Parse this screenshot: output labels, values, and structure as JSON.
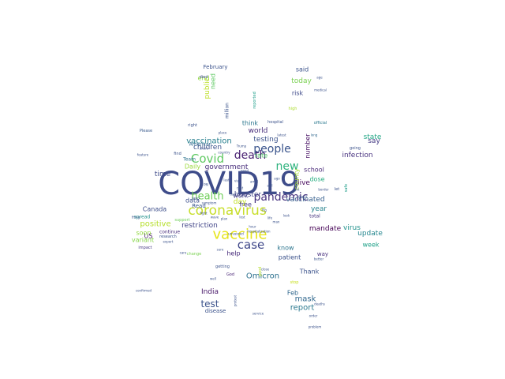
{
  "words": [
    {
      "text": "COVID19",
      "color": "#3e4c8a"
    },
    {
      "text": "coronavirus",
      "color": "#c8de2b"
    },
    {
      "text": "vaccine",
      "color": "#e6e41b"
    },
    {
      "text": "death",
      "color": "#482071"
    },
    {
      "text": "Covid",
      "color": "#5fc962"
    },
    {
      "text": "people",
      "color": "#3a548c"
    },
    {
      "text": "new",
      "color": "#2db27d"
    },
    {
      "text": "case",
      "color": "#3f4789"
    },
    {
      "text": "pandemic",
      "color": "#46327e"
    },
    {
      "text": "health",
      "color": "#6ece58"
    },
    {
      "text": "vaccination",
      "color": "#277f8e"
    },
    {
      "text": "positive",
      "color": "#b5de2b"
    },
    {
      "text": "Omicron",
      "color": "#2c718e"
    },
    {
      "text": "restriction",
      "color": "#414487"
    },
    {
      "text": "mandate",
      "color": "#440154"
    },
    {
      "text": "test",
      "color": "#3b528b"
    },
    {
      "text": "mask",
      "color": "#31688e"
    },
    {
      "text": "report",
      "color": "#2a788e"
    },
    {
      "text": "government",
      "color": "#472d7b"
    },
    {
      "text": "vaccinated",
      "color": "#355f8d"
    },
    {
      "text": "testing",
      "color": "#3b528b"
    },
    {
      "text": "world",
      "color": "#472c7a"
    },
    {
      "text": "children",
      "color": "#3b528b"
    },
    {
      "text": "booster",
      "color": "#404688"
    },
    {
      "text": "infection",
      "color": "#46307e"
    },
    {
      "text": "update",
      "color": "#24868e"
    },
    {
      "text": "virus",
      "color": "#21918c"
    },
    {
      "text": "time",
      "color": "#3e4a89"
    },
    {
      "text": "Canada",
      "color": "#3d4e8a"
    },
    {
      "text": "India",
      "color": "#48186a"
    },
    {
      "text": "live",
      "color": "#46085c"
    },
    {
      "text": "year",
      "color": "#26828e"
    },
    {
      "text": "say",
      "color": "#443983"
    },
    {
      "text": "state",
      "color": "#21a685"
    },
    {
      "text": "week",
      "color": "#1fa188"
    },
    {
      "text": "today",
      "color": "#7ad151"
    },
    {
      "text": "said",
      "color": "#3b528b"
    },
    {
      "text": "dose",
      "color": "#27ad81"
    },
    {
      "text": "school",
      "color": "#482878"
    },
    {
      "text": "rate",
      "color": "#50c46a"
    },
    {
      "text": "day",
      "color": "#c2df23"
    },
    {
      "text": "data",
      "color": "#3c4f8a"
    },
    {
      "text": "know",
      "color": "#2b748e"
    },
    {
      "text": "patient",
      "color": "#3b528b"
    },
    {
      "text": "help",
      "color": "#472a7a"
    },
    {
      "text": "work",
      "color": "#433e85"
    },
    {
      "text": "US",
      "color": "#481b6d"
    },
    {
      "text": "variant",
      "color": "#86d549"
    },
    {
      "text": "soon",
      "color": "#93d741"
    },
    {
      "text": "Thank",
      "color": "#3b528b"
    },
    {
      "text": "number",
      "color": "#471164"
    },
    {
      "text": "county",
      "color": "#a8db34"
    },
    {
      "text": "end",
      "color": "#90d743"
    },
    {
      "text": "public",
      "color": "#bddf26"
    },
    {
      "text": "need",
      "color": "#5ec962"
    },
    {
      "text": "Daily",
      "color": "#9bd93c"
    },
    {
      "text": "think",
      "color": "#2a768e"
    },
    {
      "text": "free",
      "color": "#443a83"
    },
    {
      "text": "Feb",
      "color": "#31688e"
    },
    {
      "text": "risk",
      "color": "#3e4989"
    },
    {
      "text": "way",
      "color": "#472f7d"
    },
    {
      "text": "Read",
      "color": "#39568c"
    },
    {
      "text": "total",
      "color": "#46337f"
    },
    {
      "text": "February",
      "color": "#3b528b"
    },
    {
      "text": "disease",
      "color": "#3b528b"
    },
    {
      "text": "Team",
      "color": "#2c728e"
    },
    {
      "text": "million",
      "color": "#3a538b"
    },
    {
      "text": "American",
      "color": "#31688e"
    },
    {
      "text": "continue",
      "color": "#472d7b"
    },
    {
      "text": "research",
      "color": "#3b528b"
    },
    {
      "text": "impact",
      "color": "#453882"
    },
    {
      "text": "Please",
      "color": "#38598c"
    },
    {
      "text": "spread",
      "color": "#21918c"
    },
    {
      "text": "find",
      "color": "#3b528b"
    },
    {
      "text": "right",
      "color": "#3b528b"
    },
    {
      "text": "died",
      "color": "#3e4a89"
    },
    {
      "text": "support",
      "color": "#6ece58"
    },
    {
      "text": "change",
      "color": "#7ad151"
    },
    {
      "text": "hospital",
      "color": "#3b528b"
    },
    {
      "text": "let",
      "color": "#3b528b"
    },
    {
      "text": "going",
      "color": "#3b528b"
    },
    {
      "text": "official",
      "color": "#2a788e"
    },
    {
      "text": "high",
      "color": "#addc30"
    },
    {
      "text": "reported",
      "color": "#1f9e89"
    },
    {
      "text": "getting",
      "color": "#3b528b"
    },
    {
      "text": "don't",
      "color": "#3b528b"
    },
    {
      "text": "God",
      "color": "#482475"
    },
    {
      "text": "good",
      "color": "#b5de2b"
    },
    {
      "text": "stop",
      "color": "#c8e020"
    },
    {
      "text": "safe",
      "color": "#1f9e89"
    },
    {
      "text": "short",
      "color": "#3b528b"
    },
    {
      "text": "country",
      "color": "#3b528b"
    },
    {
      "text": "latest",
      "color": "#3b528b"
    },
    {
      "text": "border",
      "color": "#3b528b"
    },
    {
      "text": "protest",
      "color": "#3b528b"
    },
    {
      "text": "unvaxxed",
      "color": "#3b528b"
    },
    {
      "text": "hospitalization",
      "color": "#3b528b"
    },
    {
      "text": "medical",
      "color": "#3b528b"
    },
    {
      "text": "long",
      "color": "#31688e"
    },
    {
      "text": "care",
      "color": "#3b528b"
    },
    {
      "text": "better",
      "color": "#3b528b"
    },
    {
      "text": "expert",
      "color": "#3b528b"
    },
    {
      "text": "order",
      "color": "#3b528b"
    },
    {
      "text": "problem",
      "color": "#3b528b"
    },
    {
      "text": "feature",
      "color": "#3b528b"
    },
    {
      "text": "service",
      "color": "#3b528b"
    },
    {
      "text": "deaths",
      "color": "#3b528b"
    },
    {
      "text": "confirmed",
      "color": "#3b528b"
    },
    {
      "text": "thing",
      "color": "#3b528b"
    },
    {
      "text": "place",
      "color": "#3b528b"
    },
    {
      "text": "age",
      "color": "#3b528b"
    },
    {
      "text": "symptom",
      "color": "#3b528b"
    },
    {
      "text": "Trump",
      "color": "#3b528b"
    },
    {
      "text": "well",
      "color": "#3b528b"
    },
    {
      "text": "close",
      "color": "#3b528b"
    },
    {
      "text": "sure",
      "color": "#3b528b"
    },
    {
      "text": "cost",
      "color": "#3b528b"
    },
    {
      "text": "hour",
      "color": "#3b528b"
    },
    {
      "text": "plan",
      "color": "#3b528b"
    },
    {
      "text": "need",
      "color": "#3b528b"
    },
    {
      "text": "amid",
      "color": "#3b528b"
    },
    {
      "text": "via",
      "color": "#3b528b"
    },
    {
      "text": "due",
      "color": "#3b528b"
    },
    {
      "text": "lost",
      "color": "#3b528b"
    },
    {
      "text": "still",
      "color": "#3b528b"
    },
    {
      "text": "ago",
      "color": "#3b528b"
    },
    {
      "text": "Hon",
      "color": "#3b528b"
    },
    {
      "text": "got",
      "color": "#3b528b"
    },
    {
      "text": "last",
      "color": "#3b528b"
    },
    {
      "text": "PM",
      "color": "#3b528b"
    },
    {
      "text": "life",
      "color": "#3b528b"
    },
    {
      "text": "keep",
      "color": "#3b528b"
    },
    {
      "text": "Fig",
      "color": "#3b528b"
    },
    {
      "text": "man",
      "color": "#3b528b"
    },
    {
      "text": "look",
      "color": "#3b528b"
    },
    {
      "text": "wave",
      "color": "#3b528b"
    },
    {
      "text": "fight",
      "color": "#3b528b"
    },
    {
      "text": "via",
      "color": "#3b528b"
    },
    {
      "text": "due",
      "color": "#3b528b"
    }
  ]
}
